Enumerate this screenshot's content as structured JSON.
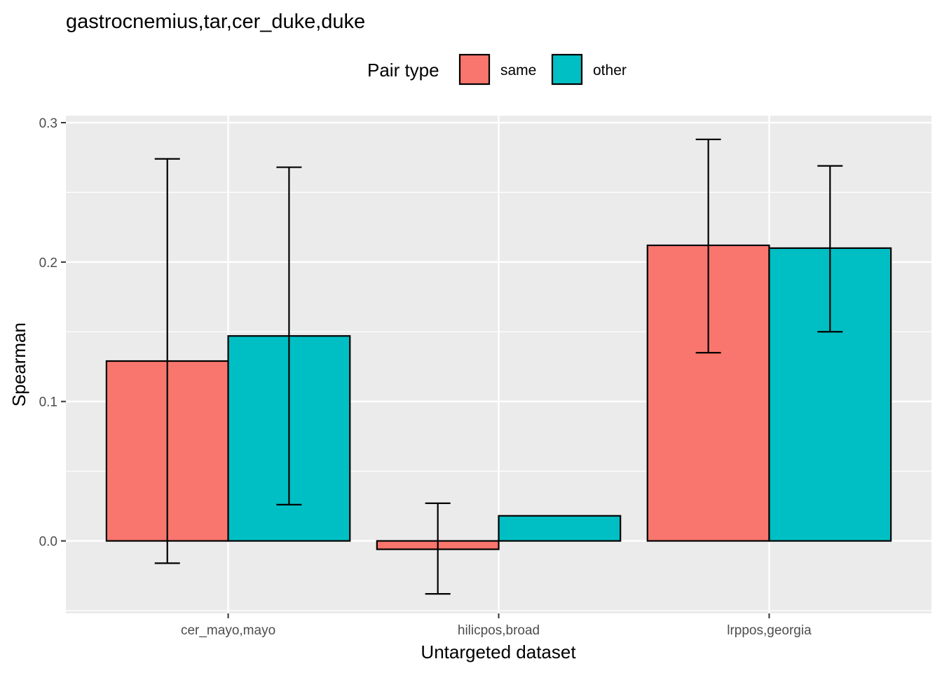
{
  "chart_data": {
    "type": "bar",
    "title": "gastrocnemius,tar,cer_duke,duke",
    "xlabel": "Untargeted dataset",
    "ylabel": "Spearman",
    "categories": [
      "cer_mayo,mayo",
      "hilicpos,broad",
      "lrppos,georgia"
    ],
    "series": [
      {
        "name": "same",
        "color": "#F8766D",
        "values": [
          0.129,
          -0.006,
          0.212
        ],
        "error_low": [
          -0.016,
          -0.038,
          0.135
        ],
        "error_high": [
          0.274,
          0.027,
          0.288
        ]
      },
      {
        "name": "other",
        "color": "#00BFC4",
        "values": [
          0.147,
          0.018,
          0.21
        ],
        "error_low": [
          0.026,
          null,
          0.15
        ],
        "error_high": [
          0.268,
          null,
          0.269
        ]
      }
    ],
    "ylim": [
      -0.052,
      0.305
    ],
    "yticks": [
      0.0,
      0.1,
      0.2,
      0.3
    ],
    "ytick_labels": [
      "0.0",
      "0.1",
      "0.2",
      "0.3"
    ],
    "grid": true,
    "legend": {
      "title": "Pair type",
      "position": "top"
    }
  }
}
